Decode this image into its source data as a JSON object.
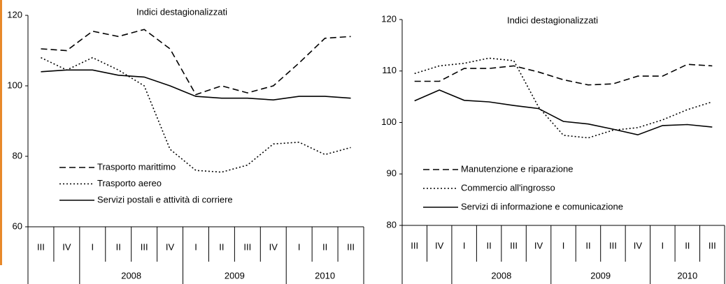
{
  "chart_data": [
    {
      "type": "line",
      "title": "Indici destagionalizzati",
      "categories": [
        "III",
        "IV",
        "I",
        "II",
        "III",
        "IV",
        "I",
        "II",
        "III",
        "IV",
        "I",
        "II",
        "III"
      ],
      "years": [
        null,
        null,
        "2008",
        null,
        null,
        null,
        "2009",
        null,
        null,
        null,
        "2010",
        null,
        null
      ],
      "ylim": [
        60,
        120
      ],
      "yticks": [
        60,
        80,
        100,
        120
      ],
      "series": [
        {
          "name": "Trasporto marittimo",
          "color": "#000",
          "style": "dashed",
          "values": [
            110.5,
            110,
            115.5,
            114,
            116,
            110.5,
            97.5,
            100,
            98,
            100,
            106.5,
            113.5,
            114
          ]
        },
        {
          "name": "Trasporto aereo",
          "color": "#000",
          "style": "dotted",
          "values": [
            108,
            104.5,
            108,
            104.5,
            100,
            82,
            76,
            75.5,
            77.5,
            83.5,
            84,
            80.5,
            82.5
          ]
        },
        {
          "name": "Servizi postali e attività di corriere",
          "color": "#000",
          "style": "solid",
          "values": [
            104,
            104.5,
            104.5,
            103,
            102.5,
            100,
            97,
            96.5,
            96.5,
            96,
            97,
            97,
            96.5
          ]
        }
      ]
    },
    {
      "type": "line",
      "title": "Indici destagionalizzati",
      "categories": [
        "III",
        "IV",
        "I",
        "II",
        "III",
        "IV",
        "I",
        "II",
        "III",
        "IV",
        "I",
        "II",
        "III"
      ],
      "years": [
        null,
        null,
        "2008",
        null,
        null,
        null,
        "2009",
        null,
        null,
        null,
        "2010",
        null,
        null
      ],
      "ylim": [
        80,
        120
      ],
      "yticks": [
        80,
        90,
        100,
        110,
        120
      ],
      "series": [
        {
          "name": "Manutenzione e riparazione",
          "color": "#000",
          "style": "dashed",
          "values": [
            108,
            108,
            110.5,
            110.5,
            111,
            109.8,
            108.3,
            107.3,
            107.5,
            109,
            109,
            111.3,
            111
          ]
        },
        {
          "name": "Commercio all'ingrosso",
          "color": "#000",
          "style": "dotted",
          "values": [
            109.5,
            111,
            111.5,
            112.5,
            112,
            103,
            97.5,
            97,
            98.5,
            99,
            100.5,
            102.5,
            104
          ]
        },
        {
          "name": "Servizi di informazione e comunicazione",
          "color": "#000",
          "style": "solid",
          "values": [
            104.2,
            106.3,
            104.3,
            104,
            103.3,
            102.7,
            100.2,
            99.7,
            98.7,
            97.6,
            99.4,
            99.6,
            99.1
          ]
        }
      ]
    }
  ]
}
